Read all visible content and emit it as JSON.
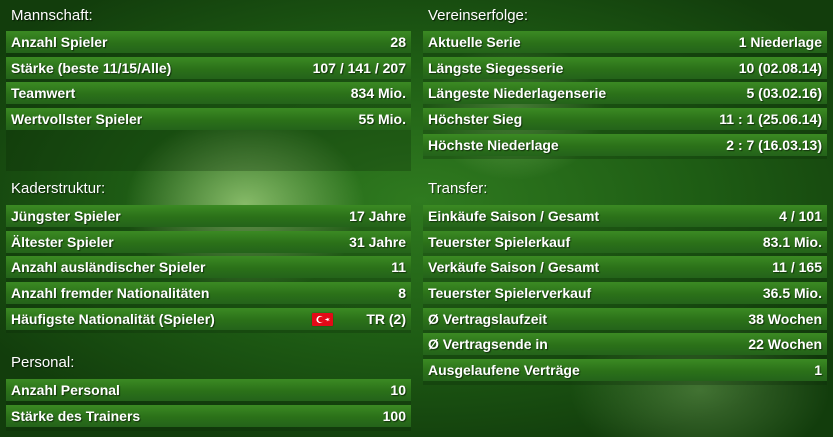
{
  "mannschaft": {
    "title": "Mannschaft:",
    "rows": [
      {
        "label": "Anzahl Spieler",
        "value": "28"
      },
      {
        "label": "Stärke (beste 11/15/Alle)",
        "value": "107 / 141 / 207"
      },
      {
        "label": "Teamwert",
        "value": "834 Mio."
      },
      {
        "label": "Wertvollster Spieler",
        "value": "55 Mio."
      }
    ]
  },
  "kaderstruktur": {
    "title": "Kaderstruktur:",
    "rows": [
      {
        "label": "Jüngster Spieler",
        "value": "17 Jahre"
      },
      {
        "label": "Ältester Spieler",
        "value": "31 Jahre"
      },
      {
        "label": "Anzahl ausländischer Spieler",
        "value": "11"
      },
      {
        "label": "Anzahl fremder Nationalitäten",
        "value": "8"
      },
      {
        "label": "Häufigste Nationalität (Spieler)",
        "value": "TR (2)",
        "flag_icon": "turkey-flag-icon"
      }
    ]
  },
  "personal": {
    "title": "Personal:",
    "rows": [
      {
        "label": "Anzahl Personal",
        "value": "10"
      },
      {
        "label": "Stärke des Trainers",
        "value": "100"
      }
    ]
  },
  "vereinserfolge": {
    "title": "Vereinserfolge:",
    "rows": [
      {
        "label": "Aktuelle Serie",
        "value": "1 Niederlage"
      },
      {
        "label": "Längste Siegesserie",
        "value": "10 (02.08.14)"
      },
      {
        "label": "Längeste Niederlagenserie",
        "value": "5 (03.02.16)"
      },
      {
        "label": "Höchster Sieg",
        "value": "11 : 1 (25.06.14)"
      },
      {
        "label": "Höchste Niederlage",
        "value": "2 : 7 (16.03.13)"
      }
    ]
  },
  "transfer": {
    "title": "Transfer:",
    "rows": [
      {
        "label": "Einkäufe Saison / Gesamt",
        "value": "4 / 101"
      },
      {
        "label": "Teuerster Spielerkauf",
        "value": "83.1 Mio."
      },
      {
        "label": "Verkäufe Saison / Gesamt",
        "value": "11 / 165"
      },
      {
        "label": "Teuerster Spielerverkauf",
        "value": "36.5 Mio."
      },
      {
        "label": "Ø Vertragslaufzeit",
        "value": "38 Wochen"
      },
      {
        "label": "Ø Vertragsende in",
        "value": "22 Wochen"
      },
      {
        "label": "Ausgelaufene Verträge",
        "value": "1"
      }
    ]
  }
}
